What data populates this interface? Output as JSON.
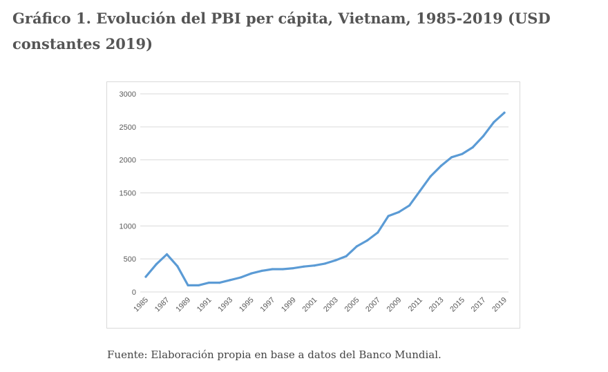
{
  "heading": "Gráfico 1. Evolución del PBI per cápita, Vietnam, 1985-2019 (USD constantes 2019)",
  "source_note": "Fuente: Elaboración propia en base a datos del Banco Mundial.",
  "colors": {
    "line": "#5b9bd5",
    "grid": "#d9d9d9",
    "tick_text": "#595959",
    "heading": "#555555"
  },
  "chart_data": {
    "type": "line",
    "title": "",
    "xlabel": "",
    "ylabel": "",
    "grid": true,
    "legend": "none",
    "ylim": [
      0,
      3000
    ],
    "y_ticks": [
      0,
      500,
      1000,
      1500,
      2000,
      2500,
      3000
    ],
    "x_tick_labels": [
      "1985",
      "1987",
      "1989",
      "1991",
      "1993",
      "1995",
      "1997",
      "1999",
      "2001",
      "2003",
      "2005",
      "2007",
      "2009",
      "2011",
      "2013",
      "2015",
      "2017",
      "2019"
    ],
    "x": [
      1985,
      1986,
      1987,
      1988,
      1989,
      1990,
      1991,
      1992,
      1993,
      1994,
      1995,
      1996,
      1997,
      1998,
      1999,
      2000,
      2001,
      2002,
      2003,
      2004,
      2005,
      2006,
      2007,
      2008,
      2009,
      2010,
      2011,
      2012,
      2013,
      2014,
      2015,
      2016,
      2017,
      2018,
      2019
    ],
    "series": [
      {
        "values": [
          230,
          420,
          570,
          390,
          100,
          100,
          140,
          140,
          180,
          220,
          280,
          320,
          345,
          345,
          360,
          385,
          400,
          430,
          480,
          540,
          690,
          780,
          900,
          1150,
          1210,
          1310,
          1530,
          1750,
          1910,
          2040,
          2090,
          2190,
          2360,
          2570,
          2715
        ]
      }
    ]
  }
}
